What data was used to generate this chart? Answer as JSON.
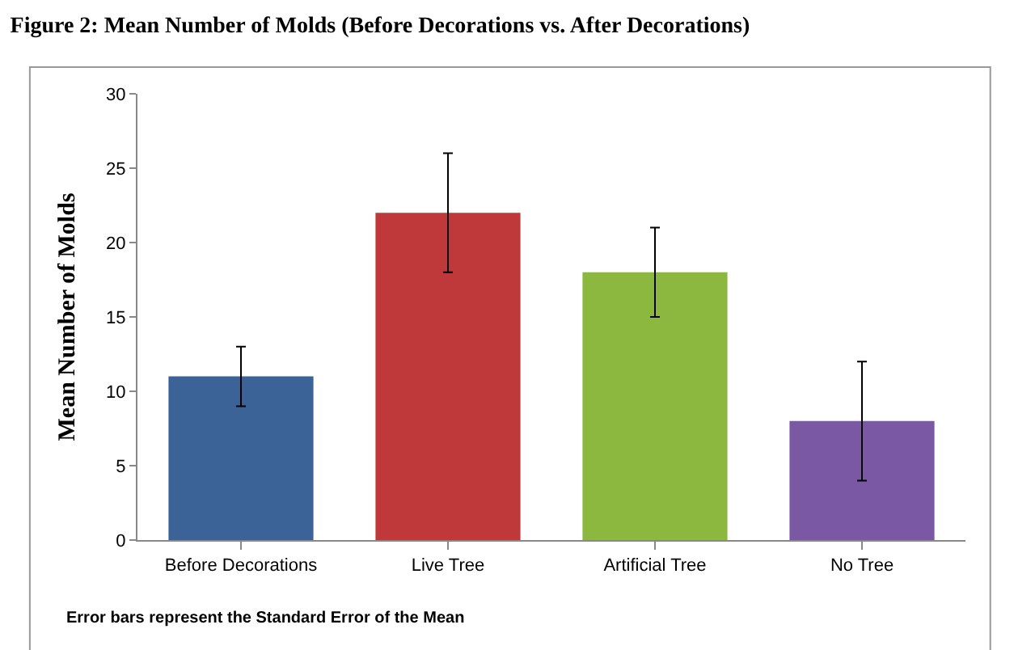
{
  "chart_data": {
    "type": "bar",
    "title": "Figure 2: Mean Number of Molds (Before Decorations vs. After Decorations)",
    "ylabel": "Mean Number of Molds",
    "categories": [
      "Before Decorations",
      "Live Tree",
      "Artificial Tree",
      "No Tree"
    ],
    "values": [
      11,
      22,
      18,
      8
    ],
    "errors": [
      2,
      4,
      3,
      4
    ],
    "colors": [
      "#3c6397",
      "#c0393a",
      "#8db83f",
      "#7a58a3"
    ],
    "ylim": [
      0,
      30
    ],
    "yticks": [
      0,
      5,
      10,
      15,
      20,
      25,
      30
    ],
    "annotations": [
      "Error bars represent the Standard Error of the Mean"
    ]
  }
}
